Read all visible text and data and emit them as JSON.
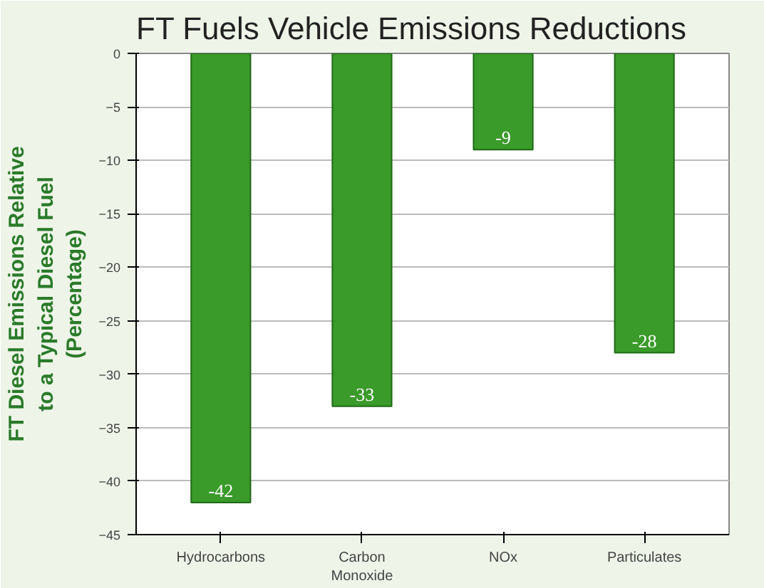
{
  "chart_data": {
    "type": "bar",
    "title": "FT Fuels Vehicle Emissions Reductions",
    "ylabel": "FT Diesel Emissions Relative to a Typical Diesel Fuel (Percentage)",
    "categories": [
      "Hydrocarbons",
      "Carbon Monoxide",
      "NOx",
      "Particulates"
    ],
    "values": [
      -42,
      -33,
      -9,
      -28
    ],
    "color": "#3a9a2a",
    "ylim": [
      -45,
      0
    ],
    "yticks": [
      -45,
      -40,
      -35,
      -30,
      -25,
      -20,
      -15,
      -10,
      -5,
      0
    ],
    "grid": "y",
    "data_labels": true
  }
}
